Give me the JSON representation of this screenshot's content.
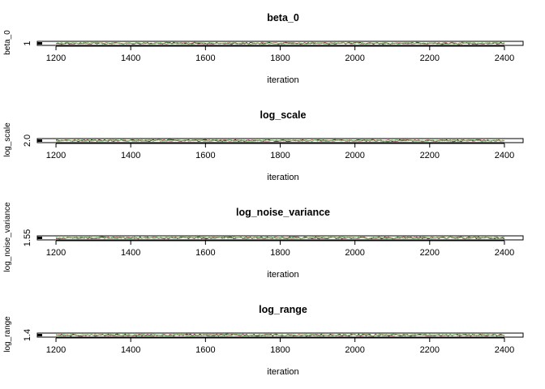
{
  "chart_data": [
    {
      "type": "line",
      "title": "beta_0",
      "xlabel": "iteration",
      "ylabel": "beta_0",
      "xlim": [
        1150,
        2450
      ],
      "x_range": [
        1200,
        2400
      ],
      "x_ticks": [
        "1200",
        "1400",
        "1600",
        "1800",
        "2000",
        "2200",
        "2400"
      ],
      "y_ticks": [
        "1"
      ],
      "series_colors": [
        "#000000",
        "#DF536B",
        "#61D04F"
      ]
    },
    {
      "type": "line",
      "title": "log_scale",
      "xlabel": "iteration",
      "ylabel": "log_scale",
      "xlim": [
        1150,
        2450
      ],
      "x_range": [
        1200,
        2400
      ],
      "x_ticks": [
        "1200",
        "1400",
        "1600",
        "1800",
        "2000",
        "2200",
        "2400"
      ],
      "y_ticks": [
        "2.0"
      ],
      "series_colors": [
        "#000000",
        "#DF536B",
        "#61D04F"
      ]
    },
    {
      "type": "line",
      "title": "log_noise_variance",
      "xlabel": "iteration",
      "ylabel": "log_noise_variance",
      "xlim": [
        1150,
        2450
      ],
      "x_range": [
        1200,
        2400
      ],
      "x_ticks": [
        "1200",
        "1400",
        "1600",
        "1800",
        "2000",
        "2200",
        "2400"
      ],
      "y_ticks": [
        "1.55"
      ],
      "series_colors": [
        "#000000",
        "#DF536B",
        "#61D04F"
      ]
    },
    {
      "type": "line",
      "title": "log_range",
      "xlabel": "iteration",
      "ylabel": "log_range",
      "xlim": [
        1150,
        2450
      ],
      "x_range": [
        1200,
        2400
      ],
      "x_ticks": [
        "1200",
        "1400",
        "1600",
        "1800",
        "2000",
        "2200",
        "2400"
      ],
      "y_ticks": [
        "1.4"
      ],
      "series_colors": [
        "#000000",
        "#DF536B",
        "#61D04F"
      ]
    }
  ]
}
